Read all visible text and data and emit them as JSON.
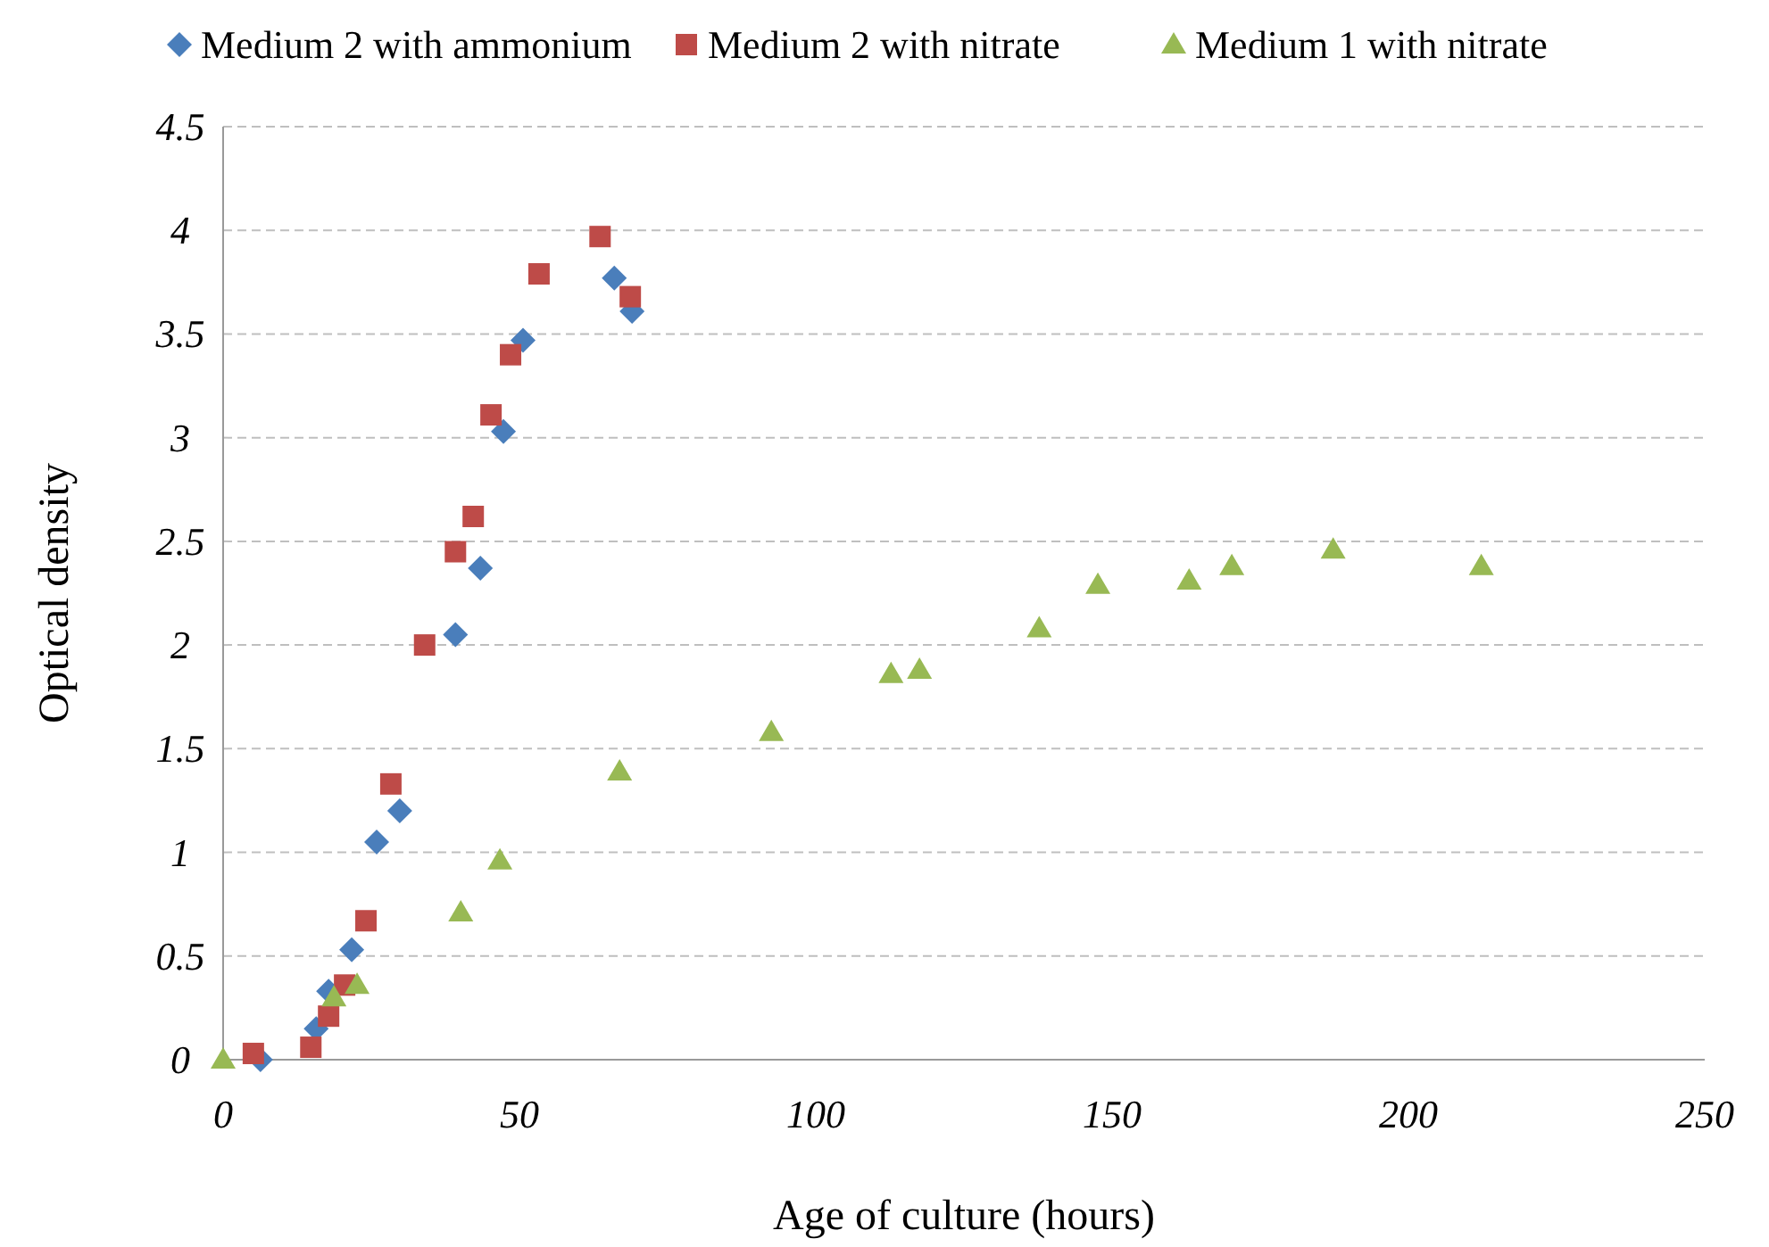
{
  "chart_data": {
    "type": "scatter",
    "xlabel": "Age of culture (hours)",
    "ylabel": "Optical density",
    "xlim": [
      0,
      250
    ],
    "xticks": [
      0,
      50,
      100,
      150,
      200,
      250
    ],
    "ylim": [
      0,
      4.5
    ],
    "yticks": [
      0,
      0.5,
      1,
      1.5,
      2,
      2.5,
      3,
      3.5,
      4,
      4.5
    ],
    "grid": "y",
    "legend": "top",
    "series": [
      {
        "name": "Medium 2 with ammonium",
        "color": "#4a7ebb",
        "marker": "diamond",
        "x": [
          6.3,
          15.7,
          17.8,
          21.7,
          25.9,
          29.8,
          39.2,
          43.4,
          47.3,
          50.6,
          66,
          69
        ],
        "values": [
          0,
          0.15,
          0.33,
          0.53,
          1.05,
          1.2,
          2.05,
          2.37,
          3.03,
          3.47,
          3.77,
          3.61
        ]
      },
      {
        "name": "Medium 2 with nitrate",
        "color": "#be4b48",
        "marker": "square",
        "x": [
          5.1,
          14.8,
          17.8,
          20.5,
          24.1,
          28.3,
          34,
          39.2,
          42.2,
          45.2,
          48.5,
          53.3,
          63.6,
          68.7
        ],
        "values": [
          0.03,
          0.06,
          0.21,
          0.36,
          0.67,
          1.33,
          2.0,
          2.45,
          2.62,
          3.11,
          3.4,
          3.79,
          3.97,
          3.68
        ]
      },
      {
        "name": "Medium 1 with nitrate",
        "color": "#98b954",
        "marker": "triangle",
        "x": [
          0,
          18.7,
          22.6,
          40.1,
          46.7,
          66.9,
          92.5,
          112.7,
          117.5,
          137.7,
          147.6,
          163,
          170.2,
          187.3,
          212.3
        ],
        "values": [
          0,
          0.3,
          0.36,
          0.71,
          0.96,
          1.39,
          1.58,
          1.86,
          1.88,
          2.08,
          2.29,
          2.31,
          2.38,
          2.46,
          2.38
        ]
      }
    ]
  }
}
